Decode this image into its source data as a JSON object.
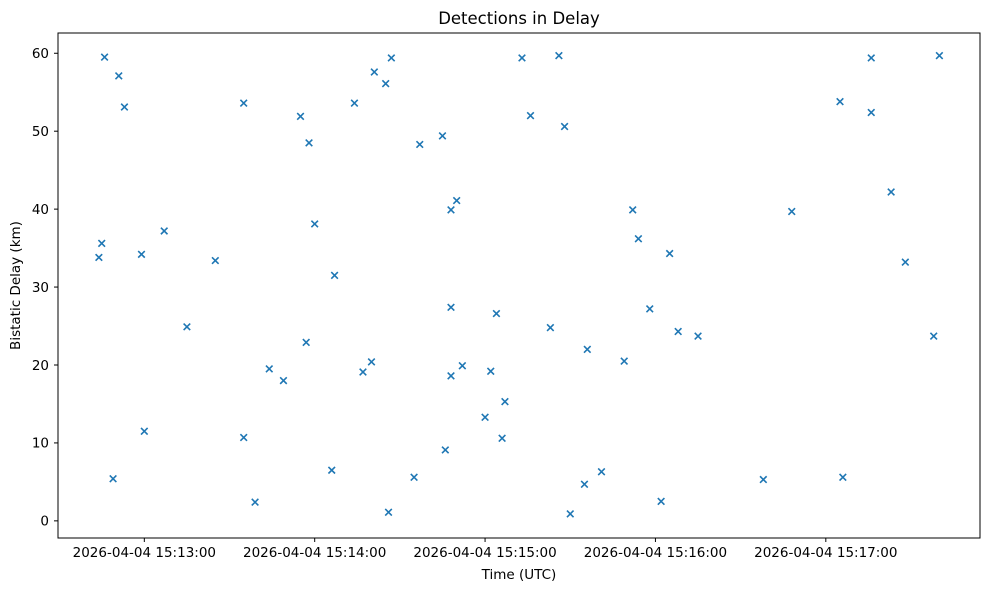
{
  "chart_data": {
    "type": "scatter",
    "title": "Detections in Delay",
    "xlabel": "Time (UTC)",
    "ylabel": "Bistatic Delay (km)",
    "marker": "x",
    "marker_color": "#1f77b4",
    "background_color": "#ffffff",
    "grid": false,
    "legend": "none",
    "x_encoding": "seconds after 2026-04-04 15:12:00 UTC",
    "xlim_sec": [
      29.6,
      354.3
    ],
    "ylim": [
      -2.2,
      62.6
    ],
    "x_ticks": [
      {
        "sec": 60,
        "label": "2026-04-04 15:13:00"
      },
      {
        "sec": 120,
        "label": "2026-04-04 15:14:00"
      },
      {
        "sec": 180,
        "label": "2026-04-04 15:15:00"
      },
      {
        "sec": 240,
        "label": "2026-04-04 15:16:00"
      },
      {
        "sec": 300,
        "label": "2026-04-04 15:17:00"
      }
    ],
    "y_ticks": [
      0,
      10,
      20,
      30,
      40,
      50,
      60
    ],
    "points_sec_km": [
      [
        44,
        33.8
      ],
      [
        45,
        35.6
      ],
      [
        46,
        59.5
      ],
      [
        49,
        5.4
      ],
      [
        51,
        57.1
      ],
      [
        53,
        53.1
      ],
      [
        59,
        34.2
      ],
      [
        60,
        11.5
      ],
      [
        67,
        37.2
      ],
      [
        75,
        24.9
      ],
      [
        85,
        33.4
      ],
      [
        95,
        53.6
      ],
      [
        95,
        10.7
      ],
      [
        99,
        2.4
      ],
      [
        104,
        19.5
      ],
      [
        109,
        18.0
      ],
      [
        115,
        51.9
      ],
      [
        117,
        22.9
      ],
      [
        118,
        48.5
      ],
      [
        120,
        38.1
      ],
      [
        126,
        6.5
      ],
      [
        127,
        31.5
      ],
      [
        134,
        53.6
      ],
      [
        137,
        19.1
      ],
      [
        140,
        20.4
      ],
      [
        141,
        57.6
      ],
      [
        145,
        56.1
      ],
      [
        146,
        1.1
      ],
      [
        147,
        59.4
      ],
      [
        155,
        5.6
      ],
      [
        157,
        48.3
      ],
      [
        165,
        49.4
      ],
      [
        166,
        9.1
      ],
      [
        168,
        39.9
      ],
      [
        168,
        27.4
      ],
      [
        168,
        18.6
      ],
      [
        170,
        41.1
      ],
      [
        172,
        19.9
      ],
      [
        180,
        13.3
      ],
      [
        182,
        19.2
      ],
      [
        184,
        26.6
      ],
      [
        186,
        10.6
      ],
      [
        187,
        15.3
      ],
      [
        193,
        59.4
      ],
      [
        196,
        52.0
      ],
      [
        203,
        24.8
      ],
      [
        206,
        59.7
      ],
      [
        208,
        50.6
      ],
      [
        210,
        0.9
      ],
      [
        215,
        4.7
      ],
      [
        216,
        22.0
      ],
      [
        221,
        6.3
      ],
      [
        229,
        20.5
      ],
      [
        232,
        39.9
      ],
      [
        234,
        36.2
      ],
      [
        238,
        27.2
      ],
      [
        242,
        2.5
      ],
      [
        245,
        34.3
      ],
      [
        248,
        24.3
      ],
      [
        255,
        23.7
      ],
      [
        278,
        5.3
      ],
      [
        288,
        39.7
      ],
      [
        305,
        53.8
      ],
      [
        306,
        5.6
      ],
      [
        316,
        59.4
      ],
      [
        316,
        52.4
      ],
      [
        323,
        42.2
      ],
      [
        328,
        33.2
      ],
      [
        338,
        23.7
      ],
      [
        340,
        59.7
      ]
    ]
  }
}
